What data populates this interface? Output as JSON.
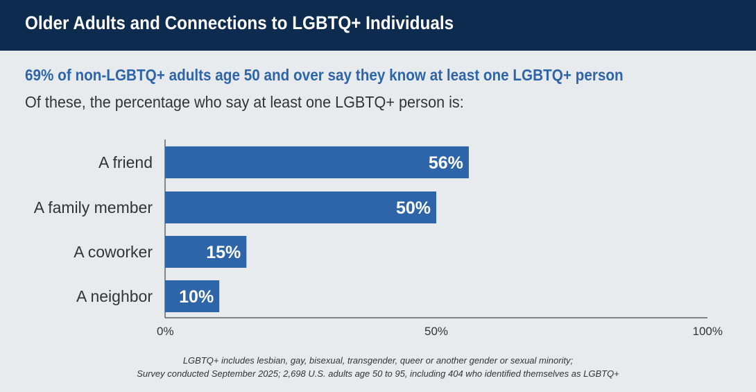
{
  "header": {
    "title": "Older Adults and Connections to LGBTQ+ Individuals"
  },
  "headline": "69% of non-LGBTQ+ adults age 50 and over say they know at least one LGBTQ+ person",
  "subhead": "Of these, the percentage who say at least one LGBTQ+ person is:",
  "chart_data": {
    "type": "bar",
    "orientation": "horizontal",
    "categories": [
      "A friend",
      "A family member",
      "A coworker",
      "A neighbor"
    ],
    "values": [
      56,
      50,
      15,
      10
    ],
    "value_labels": [
      "56%",
      "50%",
      "15%",
      "10%"
    ],
    "xlim": [
      0,
      100
    ],
    "x_ticks": [
      0,
      50,
      100
    ],
    "x_tick_labels": [
      "0%",
      "50%",
      "100%"
    ],
    "bar_color": "#2e64a8",
    "grid": false
  },
  "footnotes": {
    "line1": "LGBTQ+ includes lesbian, gay, bisexual, transgender, queer or another gender or sexual minority;",
    "line2": "Survey conducted September 2025; 2,698 U.S. adults age 50 to 95, including 404 who identified themselves as LGBTQ+"
  },
  "colors": {
    "header_bg": "#0d2a4f",
    "background": "#e8ebed",
    "accent": "#2e64a8"
  }
}
